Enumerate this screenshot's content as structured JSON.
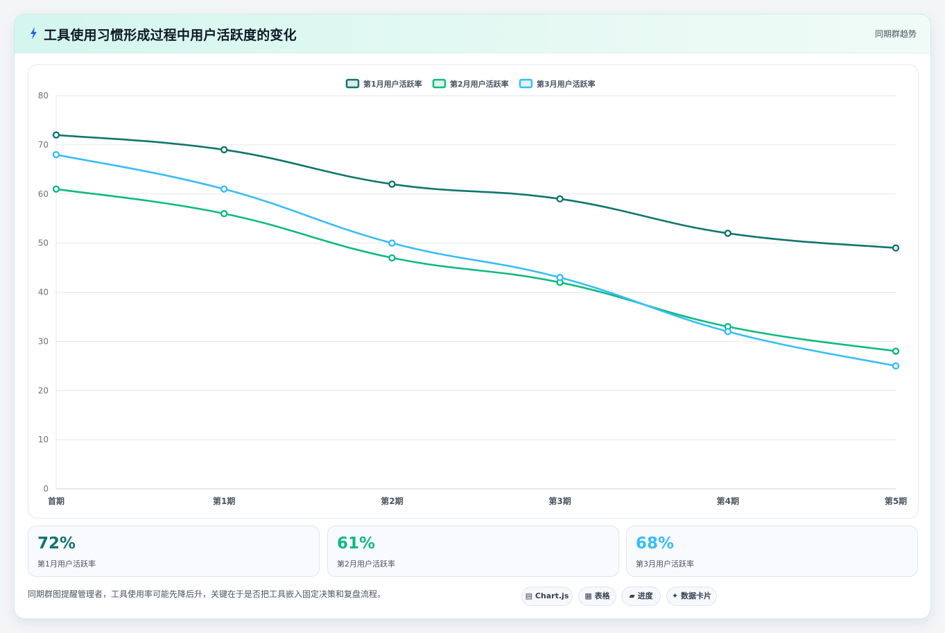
{
  "header": {
    "icon": "lightning-icon",
    "title": "工具使用习惯形成过程中用户活跃度的变化",
    "tag": "同期群趋势"
  },
  "chart_data": {
    "type": "line",
    "categories": [
      "首期",
      "第1期",
      "第2期",
      "第3期",
      "第4期",
      "第5期"
    ],
    "series": [
      {
        "name": "第1月用户活跃率",
        "color": "#0f766e",
        "values": [
          72,
          69,
          62,
          59,
          52,
          49
        ]
      },
      {
        "name": "第2月用户活跃率",
        "color": "#10b981",
        "values": [
          61,
          56,
          47,
          42,
          33,
          28
        ]
      },
      {
        "name": "第3月用户活跃率",
        "color": "#38bdf8",
        "values": [
          68,
          61,
          50,
          43,
          32,
          25
        ]
      }
    ],
    "ylim": [
      0,
      80
    ],
    "yticks": [
      "0",
      "10",
      "20",
      "30",
      "40",
      "50",
      "60",
      "70",
      "80"
    ],
    "legend_position": "top",
    "grid": true
  },
  "stats": [
    {
      "value": "72%",
      "label": "第1月用户活跃率",
      "color": "#0f766e"
    },
    {
      "value": "61%",
      "label": "第2月用户活跃率",
      "color": "#10b981"
    },
    {
      "value": "68%",
      "label": "第3月用户活跃率",
      "color": "#38bdf8"
    }
  ],
  "footnote": "同期群图提醒管理者，工具使用率可能先降后升，关键在于是否把工具嵌入固定决策和复盘流程。",
  "chips": [
    {
      "icon": "chart-icon",
      "glyph": "▤",
      "label": "Chart.js"
    },
    {
      "icon": "table-icon",
      "glyph": "▦",
      "label": "表格"
    },
    {
      "icon": "progress-icon",
      "glyph": "▰",
      "label": "进度"
    },
    {
      "icon": "card-icon",
      "glyph": "✦",
      "label": "数据卡片"
    }
  ]
}
